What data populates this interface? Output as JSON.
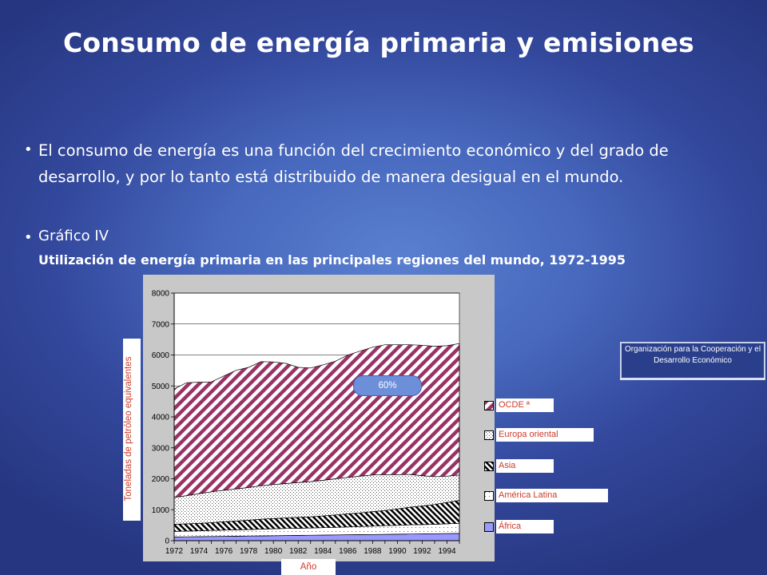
{
  "slide": {
    "title": "Consumo de energía primaria y emisiones",
    "bullets": [
      {
        "marker": "•",
        "text": "El consumo de energía es una función del crecimiento económico y del grado de desarrollo, y por lo tanto está distribuido de manera desigual en el mundo."
      },
      {
        "marker": "•",
        "text": "Gráfico IV",
        "subtitle": "Utilización de energía primaria en las principales regiones del mundo, 1972-1995"
      }
    ],
    "oecd_note": "Organización para la Cooperación y el Desarrollo Económico",
    "share_badge": "60%"
  },
  "chart_data": {
    "type": "area",
    "stacked": true,
    "ylabel": "Toneladas de petróleo equivalentes",
    "xlabel": "Año",
    "ylim": [
      0,
      8000
    ],
    "yticks": [
      0,
      1000,
      2000,
      3000,
      4000,
      5000,
      6000,
      7000,
      8000
    ],
    "xlim": [
      1972,
      1995
    ],
    "xticks": [
      1972,
      1974,
      1976,
      1978,
      1980,
      1982,
      1984,
      1986,
      1988,
      1990,
      1992,
      1994
    ],
    "grid": "horizontal",
    "x": [
      1972,
      1973,
      1974,
      1975,
      1976,
      1977,
      1978,
      1979,
      1980,
      1981,
      1982,
      1983,
      1984,
      1985,
      1986,
      1987,
      1988,
      1989,
      1990,
      1991,
      1992,
      1993,
      1994,
      1995
    ],
    "series": [
      {
        "name": "África",
        "color": "#9999ff",
        "pattern": "solid",
        "values": [
          120,
          125,
          130,
          135,
          140,
          145,
          150,
          155,
          160,
          165,
          170,
          175,
          180,
          185,
          190,
          195,
          200,
          205,
          210,
          215,
          220,
          225,
          230,
          235
        ]
      },
      {
        "name": "América Latina",
        "color": "#ffffff",
        "pattern": "dots",
        "values": [
          180,
          185,
          190,
          195,
          200,
          205,
          210,
          220,
          225,
          230,
          230,
          235,
          240,
          245,
          255,
          262,
          270,
          280,
          285,
          295,
          300,
          305,
          315,
          325
        ]
      },
      {
        "name": "Asia",
        "color": "#ffffff",
        "pattern": "diagonal-dense",
        "values": [
          230,
          235,
          240,
          250,
          270,
          285,
          300,
          320,
          330,
          340,
          350,
          360,
          380,
          400,
          420,
          440,
          470,
          490,
          530,
          570,
          600,
          640,
          690,
          740
        ]
      },
      {
        "name": "Europa oriental",
        "color": "#ffffff",
        "pattern": "dots-dense",
        "values": [
          870,
          910,
          960,
          1000,
          1020,
          1040,
          1060,
          1080,
          1100,
          1110,
          1130,
          1140,
          1150,
          1170,
          1180,
          1190,
          1180,
          1160,
          1110,
          1060,
          980,
          900,
          850,
          820
        ]
      },
      {
        "name": "OCDE ª",
        "color": "#993366",
        "pattern": "diagonal-wide",
        "values": [
          3500,
          3650,
          3600,
          3550,
          3690,
          3830,
          3880,
          4010,
          3960,
          3885,
          3720,
          3670,
          3730,
          3800,
          3950,
          4040,
          4130,
          4195,
          4195,
          4190,
          4215,
          4210,
          4215,
          4250
        ]
      }
    ],
    "legend_order": [
      "OCDE ª",
      "Europa oriental",
      "Asia",
      "América Latina",
      "África"
    ],
    "legend_placement": "right"
  }
}
